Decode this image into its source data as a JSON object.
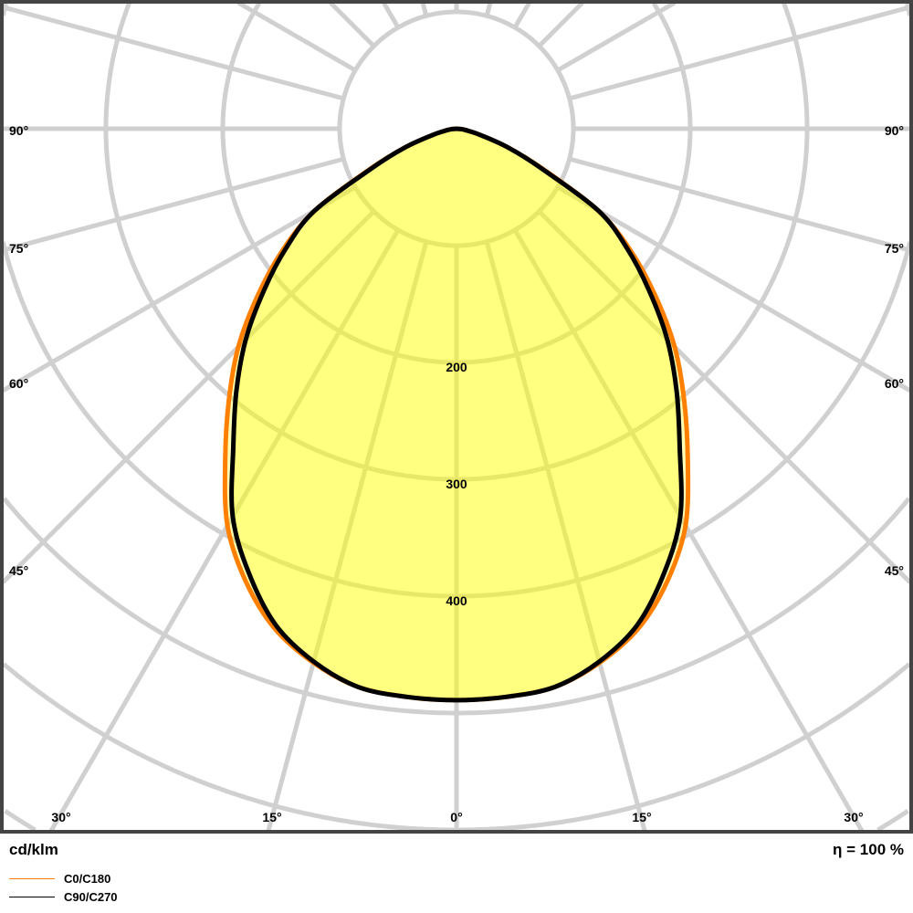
{
  "chart_data": {
    "type": "polar",
    "unit_label": "cd/klm",
    "efficiency_label": "η = 100 %",
    "ring_values": [
      100,
      200,
      300,
      400,
      500,
      600,
      700
    ],
    "ring_labels": [
      "200",
      "300",
      "400"
    ],
    "angle_step_deg": 15,
    "side_angle_labels": [
      "90°",
      "75°",
      "60°",
      "45°"
    ],
    "bottom_angle_labels": [
      "30°",
      "15°",
      "0°",
      "15°",
      "30°"
    ],
    "grid": true,
    "legend_placement": "bottom-left",
    "angles": [
      0,
      5,
      10,
      15,
      20,
      25,
      30,
      35,
      40,
      45,
      50,
      55,
      60,
      65,
      70,
      75,
      80,
      85,
      90
    ],
    "series": [
      {
        "name": "C0/C180",
        "color": "#ff8000",
        "values": [
          489,
          488,
          485,
          473,
          455,
          427,
          392,
          345,
          303,
          264,
          222,
          182,
          140,
          82,
          47,
          22,
          10,
          4,
          0
        ]
      },
      {
        "name": "C90/C270",
        "color": "#000000",
        "values": [
          489,
          488,
          485,
          472,
          452,
          420,
          383,
          333,
          293,
          255,
          215,
          178,
          140,
          80,
          47,
          22,
          10,
          4,
          0
        ]
      }
    ],
    "fill_color": "#ffff00",
    "grid_color": "#d0d0d0",
    "frame_color": "#444444"
  }
}
